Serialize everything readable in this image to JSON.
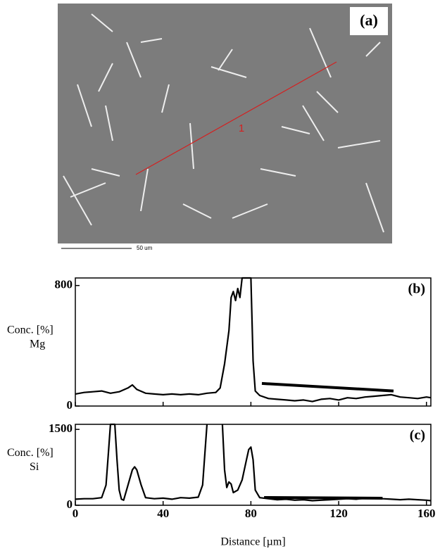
{
  "image": {
    "label": "(a)",
    "scale_bar": "50 um",
    "line_label": "1"
  },
  "chart_data": [
    {
      "type": "line",
      "label": "(b)",
      "ylabel_lines": [
        "Conc. [%]",
        "Mg"
      ],
      "xlim": [
        0,
        162
      ],
      "ylim": [
        0,
        850
      ],
      "xticks": [
        0,
        40,
        80,
        120,
        160
      ],
      "yticks": [
        0,
        800
      ],
      "show_xtick_labels": false,
      "x": [
        0,
        4,
        8,
        12,
        16,
        20,
        24,
        26,
        28,
        32,
        36,
        40,
        44,
        48,
        52,
        56,
        60,
        64,
        66,
        68,
        70,
        71,
        72,
        73,
        74,
        75,
        76,
        77,
        78,
        79,
        80,
        81,
        82,
        84,
        88,
        92,
        96,
        100,
        104,
        108,
        112,
        116,
        120,
        124,
        128,
        132,
        136,
        140,
        144,
        148,
        152,
        156,
        160,
        162
      ],
      "series": [
        {
          "color": "#000000",
          "values": [
            80,
            90,
            95,
            100,
            85,
            95,
            120,
            140,
            110,
            85,
            80,
            75,
            80,
            75,
            80,
            75,
            85,
            90,
            120,
            280,
            500,
            720,
            760,
            700,
            780,
            720,
            850,
            850,
            850,
            850,
            850,
            300,
            100,
            70,
            50,
            45,
            40,
            35,
            40,
            30,
            45,
            50,
            40,
            55,
            50,
            60,
            65,
            70,
            75,
            60,
            55,
            50,
            60,
            55
          ]
        }
      ],
      "annotation_line": {
        "x": [
          85,
          145
        ],
        "values": [
          150,
          100
        ]
      }
    },
    {
      "type": "line",
      "label": "(c)",
      "ylabel_lines": [
        "Conc. [%]",
        "Si"
      ],
      "xlabel": "Distance [µm]",
      "xlim": [
        0,
        162
      ],
      "ylim": [
        0,
        1600
      ],
      "xticks": [
        0,
        40,
        80,
        120,
        160
      ],
      "yticks": [
        0,
        1500
      ],
      "show_xtick_labels": true,
      "x": [
        0,
        4,
        8,
        12,
        14,
        15,
        16,
        17,
        18,
        19,
        20,
        21,
        22,
        24,
        26,
        27,
        28,
        30,
        32,
        36,
        40,
        44,
        48,
        52,
        56,
        58,
        59,
        60,
        63,
        67,
        68,
        69,
        70,
        71,
        72,
        74,
        76,
        78,
        79,
        80,
        81,
        82,
        84,
        88,
        92,
        96,
        100,
        104,
        108,
        112,
        116,
        120,
        124,
        128,
        132,
        136,
        140,
        144,
        148,
        152,
        156,
        160,
        162
      ],
      "series": [
        {
          "color": "#000000",
          "values": [
            120,
            130,
            130,
            150,
            400,
            1000,
            1600,
            1600,
            1600,
            900,
            300,
            120,
            100,
            400,
            700,
            760,
            700,
            400,
            150,
            130,
            140,
            120,
            150,
            140,
            160,
            400,
            1000,
            1600,
            null,
            1600,
            700,
            350,
            460,
            420,
            250,
            300,
            500,
            900,
            1100,
            1150,
            900,
            300,
            150,
            130,
            110,
            120,
            100,
            110,
            90,
            100,
            110,
            120,
            130,
            120,
            140,
            150,
            130,
            120,
            110,
            120,
            110,
            100,
            90
          ]
        }
      ],
      "annotation_line": {
        "x": [
          86,
          140
        ],
        "values": [
          153,
          139
        ]
      }
    }
  ]
}
